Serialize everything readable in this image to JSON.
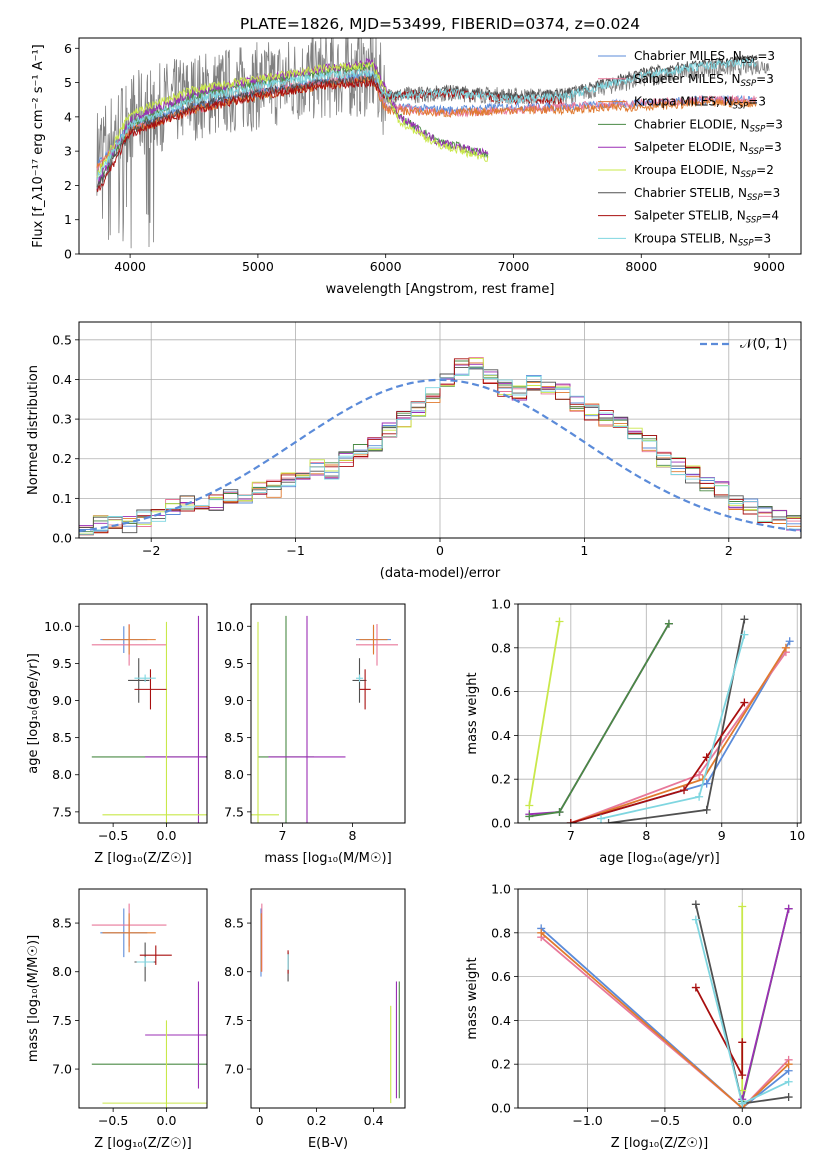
{
  "colors": {
    "chabrier_miles": "#5b8bd9",
    "salpeter_miles": "#e8789a",
    "kroupa_miles": "#e07a2f",
    "chabrier_elodie": "#4a8a45",
    "salpeter_elodie": "#9b2fb5",
    "kroupa_elodie": "#c9e84a",
    "chabrier_stelib": "#505050",
    "salpeter_stelib": "#a80f0f",
    "kroupa_stelib": "#7fd6e0",
    "raw_spectrum": "#808080",
    "normal_curve": "#5b8bd9",
    "grid": "#b0b0b0"
  },
  "chart_data": [
    {
      "type": "line",
      "title": "PLATE=1826, MJD=53499, FIBERID=0374, z=0.024",
      "xlabel": "wavelength [Angstrom, rest frame]",
      "ylabel": "Flux [f_λ10⁻¹⁷ erg cm⁻² s⁻¹ A⁻¹]",
      "xlim": [
        3600,
        9250
      ],
      "ylim": [
        0,
        6.3
      ],
      "xticks": [
        4000,
        5000,
        6000,
        7000,
        8000,
        9000
      ],
      "yticks": [
        0,
        1,
        2,
        3,
        4,
        5,
        6
      ],
      "grid": false,
      "legend_position": "top-right",
      "series": [
        {
          "name": "Chabrier MILES, N_SSP=3",
          "key": "chabrier_miles",
          "x": [
            3740,
            4000,
            4500,
            5000,
            5500,
            5900,
            6000,
            6500,
            7000,
            7400,
            8000,
            8500,
            8900
          ],
          "y": [
            2.6,
            3.7,
            4.3,
            4.7,
            5.0,
            5.2,
            4.3,
            4.2,
            4.3,
            4.3,
            4.4,
            4.5,
            4.5
          ]
        },
        {
          "name": "Salpeter MILES, N_SSP=3",
          "key": "salpeter_miles",
          "x": [
            3740,
            4000,
            4500,
            5000,
            5500,
            5900,
            6000,
            6500,
            7000,
            7400,
            8000,
            8500,
            8900
          ],
          "y": [
            2.5,
            3.6,
            4.2,
            4.7,
            5.0,
            5.1,
            4.3,
            4.1,
            4.2,
            4.3,
            4.4,
            4.5,
            4.5
          ]
        },
        {
          "name": "Kroupa MILES, N_SSP=3",
          "key": "kroupa_miles",
          "x": [
            3740,
            4000,
            4500,
            5000,
            5500,
            5900,
            6000,
            6500,
            7000,
            7400,
            8000,
            8500,
            8900
          ],
          "y": [
            2.5,
            3.6,
            4.2,
            4.6,
            4.9,
            5.1,
            4.2,
            4.1,
            4.2,
            4.2,
            4.3,
            4.4,
            4.4
          ]
        },
        {
          "name": "Chabrier ELODIE, N_SSP=3",
          "key": "chabrier_elodie",
          "x": [
            3740,
            4000,
            4500,
            5000,
            5500,
            5900,
            6100,
            6400,
            6800
          ],
          "y": [
            2.0,
            3.8,
            4.6,
            5.0,
            5.3,
            5.5,
            4.0,
            3.3,
            2.9
          ]
        },
        {
          "name": "Salpeter ELODIE, N_SSP=3",
          "key": "salpeter_elodie",
          "x": [
            3740,
            4000,
            4500,
            5000,
            5500,
            5900,
            6100,
            6400,
            6800
          ],
          "y": [
            2.0,
            3.9,
            4.7,
            5.1,
            5.4,
            5.6,
            4.0,
            3.3,
            2.9
          ]
        },
        {
          "name": "Kroupa ELODIE, N_SSP=2",
          "key": "kroupa_elodie",
          "x": [
            3740,
            4000,
            4500,
            5000,
            5500,
            5900,
            6100,
            6400,
            6800
          ],
          "y": [
            2.3,
            4.1,
            4.8,
            5.1,
            5.4,
            5.5,
            3.9,
            3.2,
            2.8
          ]
        },
        {
          "name": "Chabrier STELIB, N_SSP=3",
          "key": "chabrier_stelib",
          "x": [
            3740,
            4000,
            4500,
            5000,
            5500,
            5900,
            6000,
            6500,
            7000,
            7400,
            8000,
            8500,
            8900
          ],
          "y": [
            1.9,
            3.6,
            4.3,
            4.7,
            5.0,
            5.1,
            4.6,
            4.8,
            4.6,
            4.7,
            5.3,
            5.6,
            5.7
          ]
        },
        {
          "name": "Salpeter STELIB, N_SSP=4",
          "key": "salpeter_stelib",
          "x": [
            3740,
            4000,
            4500,
            5000,
            5500,
            5900,
            6000,
            6500,
            7000,
            7380
          ],
          "y": [
            1.8,
            3.5,
            4.2,
            4.6,
            4.9,
            5.0,
            4.6,
            4.7,
            4.5,
            4.5
          ]
        },
        {
          "name": "Kroupa STELIB, N_SSP=3",
          "key": "kroupa_stelib",
          "x": [
            3740,
            4000,
            4500,
            5000,
            5500,
            5900,
            6000,
            6500,
            7000,
            7400,
            8000,
            8500,
            8900
          ],
          "y": [
            2.2,
            3.8,
            4.5,
            4.9,
            5.2,
            5.3,
            4.6,
            4.7,
            4.5,
            4.6,
            5.2,
            5.5,
            5.6
          ]
        }
      ]
    },
    {
      "type": "line",
      "xlabel": "(data-model)/error",
      "ylabel": "Normed distribution",
      "xlim": [
        -2.5,
        2.5
      ],
      "ylim": [
        0,
        0.545
      ],
      "xticks": [
        -2,
        -1,
        0,
        1,
        2
      ],
      "xtick_labels": [
        "−2",
        "−1",
        "0",
        "1",
        "2"
      ],
      "yticks": [
        0.0,
        0.1,
        0.2,
        0.3,
        0.4,
        0.5
      ],
      "grid": true,
      "legend_position": "top-right",
      "normal_label": "𝒩(0, 1)",
      "histogram": {
        "bin_width": 0.1,
        "x": [
          -2.5,
          -2.4,
          -2.3,
          -2.2,
          -2.1,
          -2.0,
          -1.9,
          -1.8,
          -1.7,
          -1.6,
          -1.5,
          -1.4,
          -1.3,
          -1.2,
          -1.1,
          -1.0,
          -0.9,
          -0.8,
          -0.7,
          -0.6,
          -0.5,
          -0.4,
          -0.3,
          -0.2,
          -0.1,
          0.0,
          0.1,
          0.2,
          0.3,
          0.4,
          0.5,
          0.6,
          0.7,
          0.8,
          0.9,
          1.0,
          1.1,
          1.2,
          1.3,
          1.4,
          1.5,
          1.6,
          1.7,
          1.8,
          1.9,
          2.0,
          2.1,
          2.2,
          2.3,
          2.4
        ],
        "y": [
          0.03,
          0.035,
          0.04,
          0.035,
          0.05,
          0.06,
          0.075,
          0.09,
          0.085,
          0.09,
          0.1,
          0.11,
          0.12,
          0.125,
          0.15,
          0.17,
          0.18,
          0.17,
          0.2,
          0.22,
          0.24,
          0.27,
          0.3,
          0.33,
          0.36,
          0.4,
          0.43,
          0.44,
          0.41,
          0.38,
          0.37,
          0.39,
          0.38,
          0.37,
          0.34,
          0.32,
          0.3,
          0.29,
          0.27,
          0.24,
          0.2,
          0.18,
          0.16,
          0.14,
          0.12,
          0.09,
          0.08,
          0.06,
          0.05,
          0.04
        ]
      }
    },
    {
      "type": "scatter",
      "xlabel": "Z [log₁₀(Z/Z☉)]",
      "ylabel": "age  [log₁₀(age/yr)]",
      "xlim": [
        -0.82,
        0.38
      ],
      "ylim": [
        7.35,
        10.3
      ],
      "xticks": [
        -0.5,
        0.0
      ],
      "xtick_labels": [
        "−0.5",
        "0.0"
      ],
      "yticks": [
        7.5,
        8.0,
        8.5,
        9.0,
        9.5,
        10.0
      ],
      "grid": false,
      "error_points": [
        {
          "key": "chabrier_miles",
          "x": -0.4,
          "xerr": 0.22,
          "y": 9.82,
          "yerr": 0.18
        },
        {
          "key": "salpeter_miles",
          "x": -0.35,
          "xerr": 0.35,
          "y": 9.75,
          "yerr": 0.28
        },
        {
          "key": "kroupa_miles",
          "x": -0.35,
          "xerr": 0.25,
          "y": 9.82,
          "yerr": 0.2
        },
        {
          "key": "chabrier_elodie",
          "x": 0.3,
          "xerr": 1.0,
          "y": 8.24,
          "yerr": 0.0
        },
        {
          "key": "salpeter_elodie",
          "x": 0.3,
          "xerr": 0.5,
          "y": 8.24,
          "yerr": 1.9
        },
        {
          "key": "kroupa_elodie",
          "x": 0.0,
          "xerr": 0.6,
          "y": 7.46,
          "yerr": 2.6
        },
        {
          "key": "chabrier_stelib",
          "x": -0.26,
          "xerr": 0.1,
          "y": 9.27,
          "yerr": 0.3
        },
        {
          "key": "salpeter_stelib",
          "x": -0.15,
          "xerr": 0.15,
          "y": 9.15,
          "yerr": 0.27
        },
        {
          "key": "kroupa_stelib",
          "x": -0.2,
          "xerr": 0.1,
          "y": 9.3,
          "yerr": 0.05
        }
      ]
    },
    {
      "type": "scatter",
      "xlabel": "mass [log₁₀(M/M☉)]",
      "xlim": [
        6.55,
        8.75
      ],
      "ylim": [
        7.35,
        10.3
      ],
      "xticks": [
        7,
        8
      ],
      "yticks": [
        7.5,
        8.0,
        8.5,
        9.0,
        9.5,
        10.0
      ],
      "grid": false,
      "error_points": [
        {
          "key": "chabrier_miles",
          "x": 8.3,
          "xerr": 0.25,
          "y": 9.82,
          "yerr": 0.18
        },
        {
          "key": "salpeter_miles",
          "x": 8.35,
          "xerr": 0.3,
          "y": 9.75,
          "yerr": 0.28
        },
        {
          "key": "kroupa_miles",
          "x": 8.3,
          "xerr": 0.2,
          "y": 9.82,
          "yerr": 0.2
        },
        {
          "key": "chabrier_elodie",
          "x": 7.05,
          "xerr": 0.4,
          "y": 8.24,
          "yerr": 1.9
        },
        {
          "key": "salpeter_elodie",
          "x": 7.35,
          "xerr": 0.55,
          "y": 8.24,
          "yerr": 1.9
        },
        {
          "key": "kroupa_elodie",
          "x": 6.65,
          "xerr": 0.3,
          "y": 7.46,
          "yerr": 2.6
        },
        {
          "key": "chabrier_stelib",
          "x": 8.1,
          "xerr": 0.1,
          "y": 9.27,
          "yerr": 0.3
        },
        {
          "key": "salpeter_stelib",
          "x": 8.18,
          "xerr": 0.08,
          "y": 9.15,
          "yerr": 0.27
        },
        {
          "key": "kroupa_stelib",
          "x": 8.1,
          "xerr": 0.05,
          "y": 9.3,
          "yerr": 0.05
        }
      ]
    },
    {
      "type": "line",
      "xlabel": "age  [log₁₀(age/yr)]",
      "ylabel": "mass weight",
      "xlim": [
        6.3,
        10.05
      ],
      "ylim": [
        0,
        1.0
      ],
      "xticks": [
        7,
        8,
        9,
        10
      ],
      "yticks": [
        0.0,
        0.2,
        0.4,
        0.6,
        0.8,
        1.0
      ],
      "grid": true,
      "series": [
        {
          "key": "kroupa_elodie",
          "x": [
            6.45,
            6.85
          ],
          "y": [
            0.08,
            0.92
          ]
        },
        {
          "key": "salpeter_elodie",
          "x": [
            6.45,
            6.85,
            8.3
          ],
          "y": [
            0.04,
            0.05,
            0.91
          ]
        },
        {
          "key": "chabrier_elodie",
          "x": [
            6.45,
            6.85,
            8.3
          ],
          "y": [
            0.03,
            0.05,
            0.91
          ]
        },
        {
          "key": "chabrier_miles",
          "x": [
            7.0,
            8.8,
            9.9
          ],
          "y": [
            0.0,
            0.18,
            0.83
          ]
        },
        {
          "key": "salpeter_miles",
          "x": [
            7.0,
            8.7,
            9.85
          ],
          "y": [
            0.0,
            0.22,
            0.78
          ]
        },
        {
          "key": "kroupa_miles",
          "x": [
            7.0,
            8.75,
            9.85
          ],
          "y": [
            0.0,
            0.2,
            0.8
          ]
        },
        {
          "key": "chabrier_stelib",
          "x": [
            7.5,
            8.8,
            9.3
          ],
          "y": [
            0.0,
            0.06,
            0.93
          ]
        },
        {
          "key": "salpeter_stelib",
          "x": [
            7.0,
            8.5,
            8.8,
            9.3
          ],
          "y": [
            0.0,
            0.15,
            0.3,
            0.55
          ]
        },
        {
          "key": "kroupa_stelib",
          "x": [
            7.4,
            8.7,
            9.3
          ],
          "y": [
            0.02,
            0.12,
            0.86
          ]
        }
      ]
    },
    {
      "type": "scatter",
      "xlabel": "Z [log₁₀(Z/Z☉)]",
      "ylabel": "mass [log₁₀(M/M☉)]",
      "xlim": [
        -0.82,
        0.38
      ],
      "ylim": [
        6.6,
        8.85
      ],
      "xticks": [
        -0.5,
        0.0
      ],
      "xtick_labels": [
        "−0.5",
        "0.0"
      ],
      "yticks": [
        7.0,
        7.5,
        8.0,
        8.5
      ],
      "grid": false,
      "error_points": [
        {
          "key": "chabrier_miles",
          "x": -0.4,
          "xerr": 0.22,
          "y": 8.4,
          "yerr": 0.25
        },
        {
          "key": "salpeter_miles",
          "x": -0.35,
          "xerr": 0.35,
          "y": 8.48,
          "yerr": 0.22
        },
        {
          "key": "kroupa_miles",
          "x": -0.35,
          "xerr": 0.25,
          "y": 8.4,
          "yerr": 0.2
        },
        {
          "key": "chabrier_elodie",
          "x": 0.3,
          "xerr": 1.0,
          "y": 7.05,
          "yerr": 0.0
        },
        {
          "key": "salpeter_elodie",
          "x": 0.3,
          "xerr": 0.5,
          "y": 7.35,
          "yerr": 0.55
        },
        {
          "key": "kroupa_elodie",
          "x": 0.0,
          "xerr": 0.6,
          "y": 6.65,
          "yerr": 0.85
        },
        {
          "key": "chabrier_stelib",
          "x": -0.2,
          "xerr": 0.1,
          "y": 8.1,
          "yerr": 0.2
        },
        {
          "key": "salpeter_stelib",
          "x": -0.1,
          "xerr": 0.15,
          "y": 8.17,
          "yerr": 0.1
        },
        {
          "key": "kroupa_stelib",
          "x": -0.2,
          "xerr": 0.08,
          "y": 8.1,
          "yerr": 0.05
        }
      ]
    },
    {
      "type": "scatter",
      "xlabel": "E(B-V)",
      "xlim": [
        -0.03,
        0.51
      ],
      "ylim": [
        6.6,
        8.85
      ],
      "xticks": [
        0.0,
        0.2,
        0.4
      ],
      "yticks": [
        7.0,
        7.5,
        8.0,
        8.5
      ],
      "grid": false,
      "error_points": [
        {
          "key": "chabrier_miles",
          "x": 0.005,
          "xerr": 0.0,
          "y": 8.3,
          "yerr": 0.35
        },
        {
          "key": "salpeter_miles",
          "x": 0.008,
          "xerr": 0.0,
          "y": 8.35,
          "yerr": 0.35
        },
        {
          "key": "kroupa_miles",
          "x": 0.006,
          "xerr": 0.0,
          "y": 8.3,
          "yerr": 0.3
        },
        {
          "key": "chabrier_elodie",
          "x": 0.49,
          "xerr": 0.0,
          "y": 7.3,
          "yerr": 0.6
        },
        {
          "key": "salpeter_elodie",
          "x": 0.48,
          "xerr": 0.0,
          "y": 7.3,
          "yerr": 0.6
        },
        {
          "key": "kroupa_elodie",
          "x": 0.46,
          "xerr": 0.0,
          "y": 7.15,
          "yerr": 0.5
        },
        {
          "key": "chabrier_stelib",
          "x": 0.1,
          "xerr": 0.0,
          "y": 8.05,
          "yerr": 0.15
        },
        {
          "key": "salpeter_stelib",
          "x": 0.1,
          "xerr": 0.0,
          "y": 8.1,
          "yerr": 0.12
        },
        {
          "key": "kroupa_stelib",
          "x": 0.1,
          "xerr": 0.0,
          "y": 8.1,
          "yerr": 0.08
        }
      ]
    },
    {
      "type": "line",
      "xlabel": "Z [log₁₀(Z/Z☉)]",
      "ylabel": "mass weight",
      "xlim": [
        -1.45,
        0.38
      ],
      "ylim": [
        0,
        1.0
      ],
      "xticks": [
        -1.0,
        -0.5,
        0.0
      ],
      "xtick_labels": [
        "−1.0",
        "−0.5",
        "0.0"
      ],
      "yticks": [
        0.0,
        0.2,
        0.4,
        0.6,
        0.8,
        1.0
      ],
      "grid": true,
      "series": [
        {
          "key": "chabrier_miles",
          "x": [
            -1.3,
            0.0,
            0.3
          ],
          "y": [
            0.82,
            0.0,
            0.17
          ]
        },
        {
          "key": "salpeter_miles",
          "x": [
            -1.3,
            0.0,
            0.3
          ],
          "y": [
            0.78,
            0.0,
            0.22
          ]
        },
        {
          "key": "kroupa_miles",
          "x": [
            -1.3,
            0.0,
            0.3
          ],
          "y": [
            0.8,
            0.0,
            0.2
          ]
        },
        {
          "key": "chabrier_elodie",
          "x": [
            0.0,
            0.3
          ],
          "y": [
            0.03,
            0.91
          ]
        },
        {
          "key": "salpeter_elodie",
          "x": [
            0.0,
            0.3
          ],
          "y": [
            0.04,
            0.91
          ]
        },
        {
          "key": "kroupa_elodie",
          "x": [
            0.0,
            0.0
          ],
          "y": [
            0.08,
            0.92
          ]
        },
        {
          "key": "chabrier_stelib",
          "x": [
            -0.3,
            0.0,
            0.3
          ],
          "y": [
            0.93,
            0.02,
            0.05
          ]
        },
        {
          "key": "salpeter_stelib",
          "x": [
            -0.3,
            0.0,
            0.0
          ],
          "y": [
            0.55,
            0.15,
            0.3
          ]
        },
        {
          "key": "kroupa_stelib",
          "x": [
            -0.3,
            0.0,
            0.3
          ],
          "y": [
            0.86,
            0.02,
            0.12
          ]
        }
      ]
    }
  ]
}
